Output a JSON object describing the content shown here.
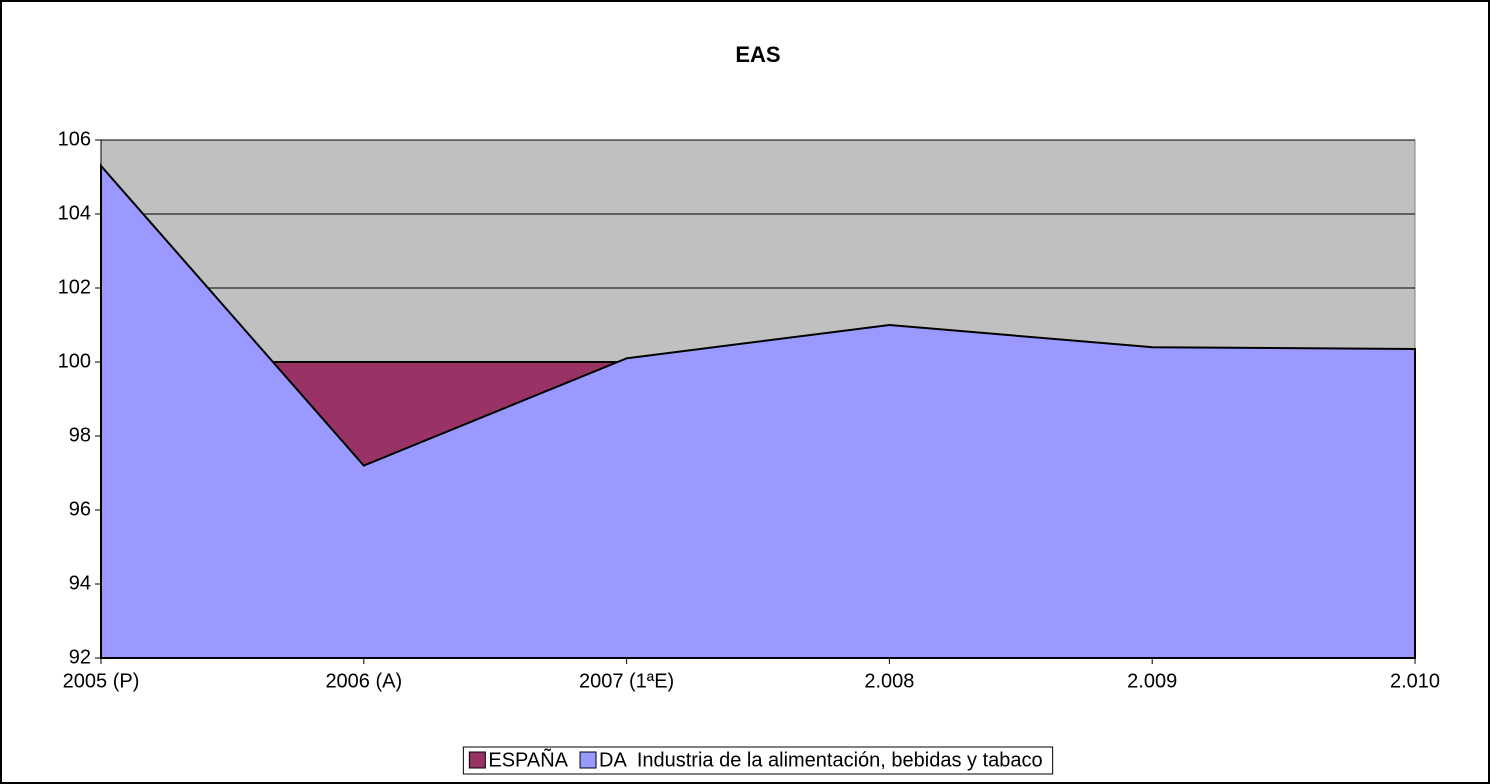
{
  "chart_data": {
    "type": "area",
    "title": "EAS",
    "categories": [
      "2005 (P)",
      "2006 (A)",
      "2007 (1ªE)",
      "2.008",
      "2.009",
      "2.010"
    ],
    "series": [
      {
        "name": "ESPAÑA",
        "color": "#993366",
        "values": [
          100,
          100,
          100,
          100,
          100,
          100
        ]
      },
      {
        "name": "DA  Industria de la alimentación, bebidas y tabaco",
        "color": "#9999ff",
        "values": [
          105.3,
          97.2,
          100.1,
          101.0,
          100.4,
          100.35
        ]
      }
    ],
    "ylim": [
      92,
      106
    ],
    "yticks": [
      92,
      94,
      96,
      98,
      100,
      102,
      104,
      106
    ],
    "grid": true,
    "plot_background": "#c0c0c0",
    "legend": "bottom"
  }
}
